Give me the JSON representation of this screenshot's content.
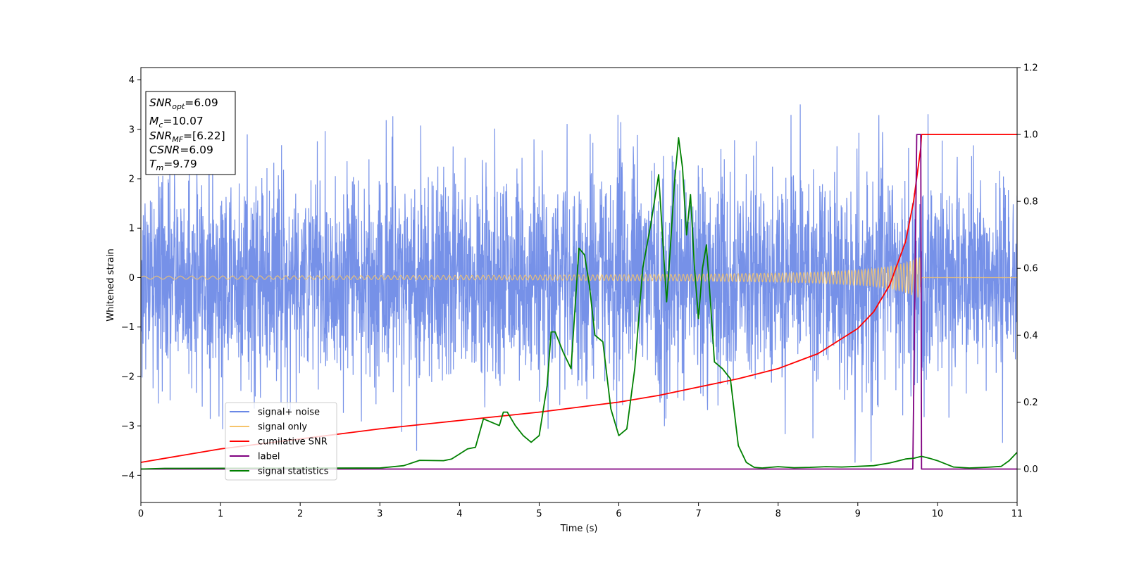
{
  "chart_data": {
    "type": "line",
    "xlabel": "Time (s)",
    "ylabel_left": "Whitened strain",
    "ylabel_right": "",
    "xlim": [
      0,
      11
    ],
    "ylim_left": [
      -4.55,
      4.25
    ],
    "ylim_right": [
      -0.1,
      1.2
    ],
    "x_ticks": [
      0,
      1,
      2,
      3,
      4,
      5,
      6,
      7,
      8,
      9,
      10,
      11
    ],
    "x_tick_labels": [
      "0",
      "1",
      "2",
      "3",
      "4",
      "5",
      "6",
      "7",
      "8",
      "9",
      "10",
      "11"
    ],
    "y_left_ticks": [
      4,
      3,
      2,
      1,
      0,
      -1,
      -2,
      -3,
      -4
    ],
    "y_left_tick_labels": [
      "4",
      "3",
      "2",
      "1",
      "0",
      "−1",
      "−2",
      "−3",
      "−4"
    ],
    "y_right_ticks": [
      1.2,
      1.0,
      0.8,
      0.6,
      0.4,
      0.2,
      0.0
    ],
    "y_right_tick_labels": [
      "1.2",
      "1.0",
      "0.8",
      "0.6",
      "0.4",
      "0.2",
      "0.0"
    ],
    "grid": false,
    "legend_position": "lower-left",
    "annotation": [
      {
        "sym": "SNR",
        "sub": "opt",
        "val": "=6.09"
      },
      {
        "sym": "M",
        "sub": "c",
        "val": "=10.07"
      },
      {
        "sym": "SNR",
        "sub": "MF",
        "val": "=[6.22]"
      },
      {
        "sym": "CSNR",
        "sub": "",
        "val": "=6.09"
      },
      {
        "sym": "T",
        "sub": "m",
        "val": "=9.79"
      }
    ],
    "series": [
      {
        "name": "signal+ noise",
        "axis": "left",
        "color": "#6a88e6",
        "style": "noise",
        "envelope_x": [
          0,
          1,
          2,
          3,
          4,
          5,
          6,
          7,
          8,
          9,
          10,
          11
        ],
        "envelope_upper": [
          2.4,
          2.5,
          2.4,
          2.5,
          2.4,
          2.5,
          2.6,
          2.5,
          2.4,
          2.5,
          2.4,
          2.4
        ],
        "envelope_lower": [
          -2.4,
          -2.5,
          -2.4,
          -2.5,
          -2.4,
          -2.5,
          -2.6,
          -2.5,
          -2.4,
          -2.5,
          -2.4,
          -2.4
        ]
      },
      {
        "name": "signal only",
        "axis": "left",
        "color": "#f6c46b",
        "style": "chirp",
        "x": [
          0,
          3,
          5,
          6,
          7,
          8,
          8.5,
          9,
          9.3,
          9.5,
          9.65,
          9.75,
          9.79,
          9.8,
          11
        ],
        "amplitude": [
          0.03,
          0.04,
          0.05,
          0.06,
          0.07,
          0.09,
          0.11,
          0.15,
          0.2,
          0.26,
          0.33,
          0.4,
          0.42,
          0,
          0
        ]
      },
      {
        "name": "cumilative SNR",
        "axis": "right",
        "color": "#ff0000",
        "x": [
          0,
          1,
          2,
          3,
          4,
          5,
          6,
          6.5,
          7,
          7.5,
          8,
          8.5,
          9,
          9.2,
          9.4,
          9.6,
          9.7,
          9.79,
          9.8,
          11
        ],
        "y": [
          0.02,
          0.06,
          0.09,
          0.12,
          0.145,
          0.17,
          0.2,
          0.22,
          0.245,
          0.27,
          0.3,
          0.345,
          0.42,
          0.47,
          0.55,
          0.68,
          0.8,
          0.96,
          1.0,
          1.0
        ]
      },
      {
        "name": "label",
        "axis": "right",
        "color": "#800080",
        "x": [
          0,
          9.69,
          9.74,
          9.79,
          9.8,
          11
        ],
        "y": [
          0,
          0,
          1.0,
          1.0,
          0,
          0
        ]
      },
      {
        "name": "signal statistics",
        "axis": "right",
        "color": "#008000",
        "x": [
          0,
          0.3,
          3.0,
          3.3,
          3.5,
          3.8,
          3.9,
          4.0,
          4.1,
          4.2,
          4.3,
          4.4,
          4.5,
          4.55,
          4.6,
          4.7,
          4.8,
          4.9,
          5.0,
          5.1,
          5.15,
          5.2,
          5.3,
          5.4,
          5.5,
          5.57,
          5.63,
          5.7,
          5.75,
          5.8,
          5.9,
          6.0,
          6.1,
          6.2,
          6.3,
          6.4,
          6.5,
          6.6,
          6.63,
          6.7,
          6.75,
          6.8,
          6.85,
          6.9,
          6.95,
          7.0,
          7.05,
          7.1,
          7.15,
          7.2,
          7.3,
          7.4,
          7.5,
          7.6,
          7.7,
          7.8,
          8.0,
          8.2,
          8.4,
          8.6,
          8.8,
          9.0,
          9.2,
          9.4,
          9.6,
          9.7,
          9.8,
          9.9,
          10.0,
          10.2,
          10.4,
          10.6,
          10.8,
          10.9,
          11.0
        ],
        "y": [
          0.0,
          0.002,
          0.003,
          0.01,
          0.026,
          0.025,
          0.03,
          0.045,
          0.06,
          0.065,
          0.15,
          0.14,
          0.13,
          0.17,
          0.17,
          0.13,
          0.1,
          0.08,
          0.1,
          0.25,
          0.41,
          0.41,
          0.35,
          0.3,
          0.66,
          0.64,
          0.55,
          0.4,
          0.39,
          0.38,
          0.18,
          0.1,
          0.12,
          0.3,
          0.6,
          0.73,
          0.88,
          0.5,
          0.6,
          0.86,
          0.99,
          0.9,
          0.7,
          0.82,
          0.6,
          0.45,
          0.6,
          0.67,
          0.5,
          0.32,
          0.3,
          0.27,
          0.07,
          0.02,
          0.005,
          0.003,
          0.007,
          0.004,
          0.005,
          0.007,
          0.006,
          0.008,
          0.01,
          0.018,
          0.03,
          0.032,
          0.038,
          0.032,
          0.025,
          0.006,
          0.003,
          0.005,
          0.008,
          0.025,
          0.05
        ]
      }
    ]
  }
}
